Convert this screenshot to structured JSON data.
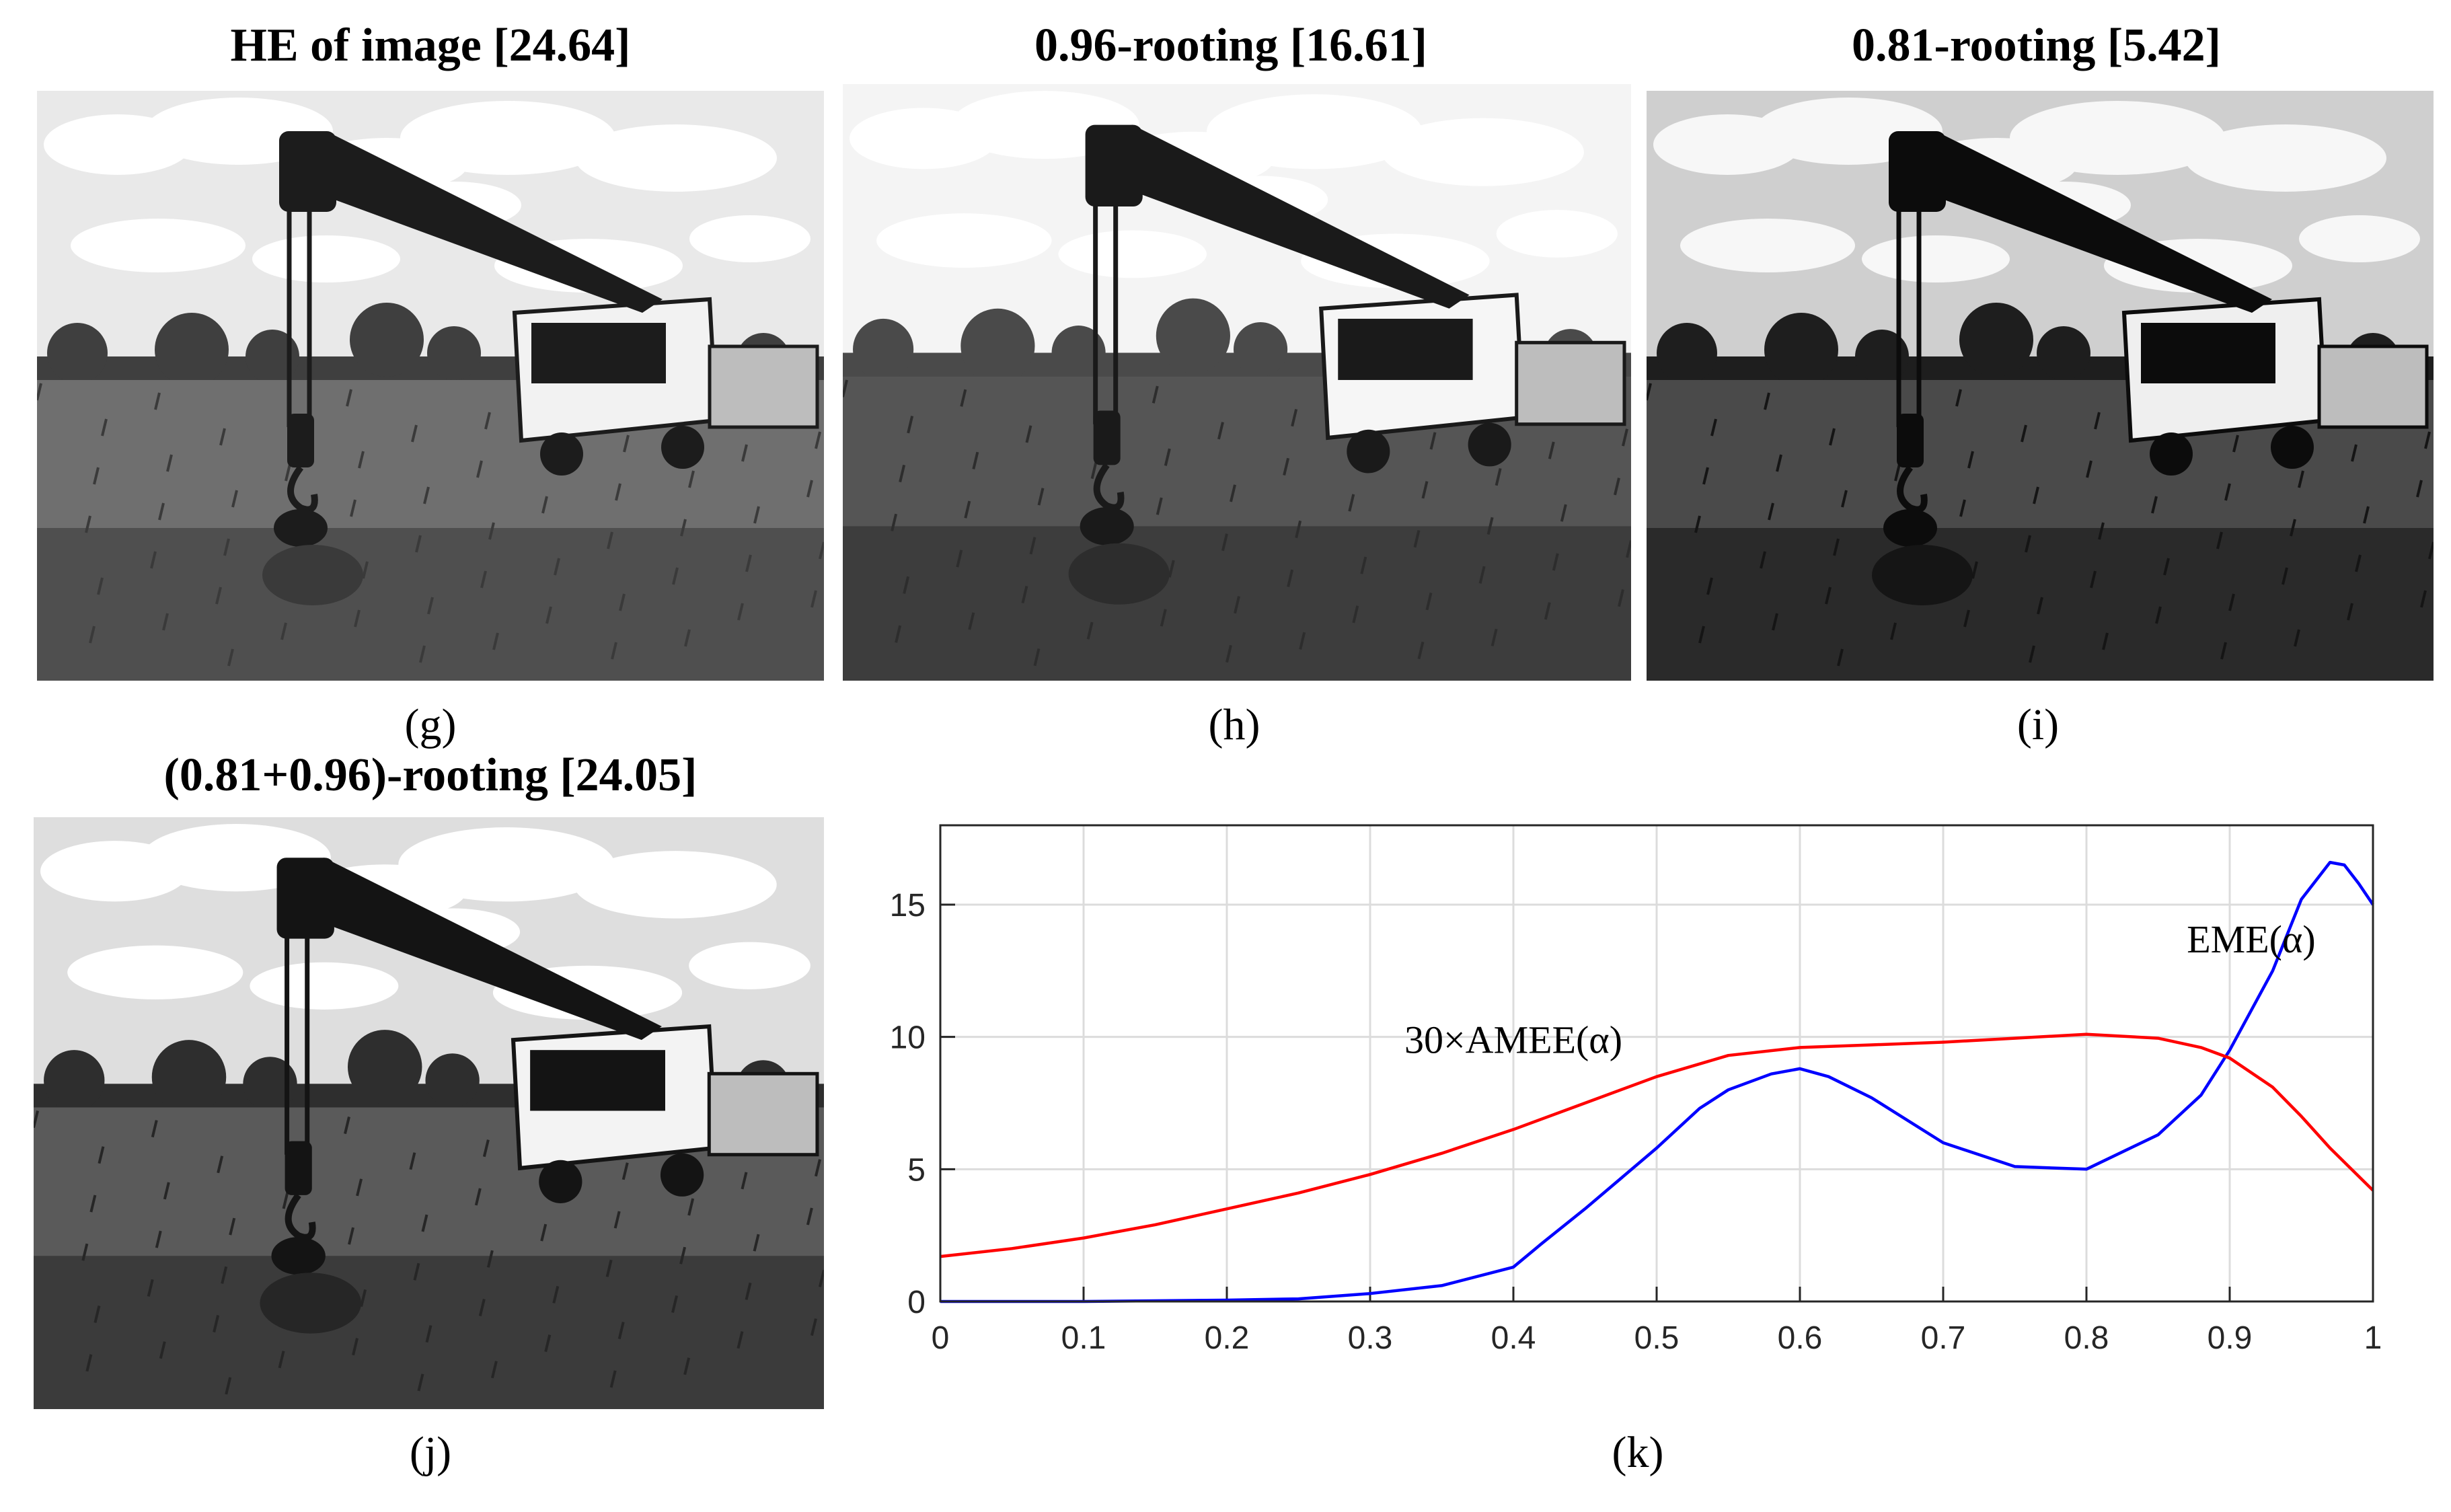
{
  "panels": [
    {
      "id": "g",
      "title": "HE of image [24.64]",
      "label": "(g)",
      "tone": {
        "sky": "#e9e9e9",
        "cloud": "#ffffff",
        "tree": "#3f3f3f",
        "field": "#6f6f6f",
        "field_dark": "#3a3a3a",
        "crane": "#1c1c1c",
        "truck": "#f2f2f2"
      }
    },
    {
      "id": "h",
      "title": "0.96-rooting [16.61]",
      "label": "(h)",
      "tone": {
        "sky": "#f4f4f4",
        "cloud": "#ffffff",
        "tree": "#4a4a4a",
        "field": "#555555",
        "field_dark": "#2d2d2d",
        "crane": "#1a1a1a",
        "truck": "#f6f6f6"
      }
    },
    {
      "id": "i",
      "title": "0.81-rooting [5.42]",
      "label": "(i)",
      "tone": {
        "sky": "#cfcfcf",
        "cloud": "#f7f7f7",
        "tree": "#1e1e1e",
        "field": "#4a4a4a",
        "field_dark": "#151515",
        "crane": "#0c0c0c",
        "truck": "#efefef"
      }
    },
    {
      "id": "j",
      "title": "(0.81+0.96)-rooting [24.05]",
      "label": "(j)",
      "tone": {
        "sky": "#dedede",
        "cloud": "#ffffff",
        "tree": "#2e2e2e",
        "field": "#5a5a5a",
        "field_dark": "#262626",
        "crane": "#141414",
        "truck": "#f3f3f3"
      }
    }
  ],
  "chart_label": "(k)",
  "chart_data": {
    "type": "line",
    "xlim": [
      0,
      1
    ],
    "ylim": [
      0,
      18
    ],
    "x_ticks": [
      0,
      0.1,
      0.2,
      0.3,
      0.4,
      0.5,
      0.6,
      0.7,
      0.8,
      0.9,
      1
    ],
    "x_tick_labels": [
      "0",
      "0.1",
      "0.2",
      "0.3",
      "0.4",
      "0.5",
      "0.6",
      "0.7",
      "0.8",
      "0.9",
      "1"
    ],
    "y_ticks": [
      0,
      5,
      10,
      15
    ],
    "y_tick_labels": [
      "0",
      "5",
      "10",
      "15"
    ],
    "grid": true,
    "series": [
      {
        "name": "EME(α)",
        "color": "#0000ff",
        "x": [
          0,
          0.1,
          0.2,
          0.25,
          0.3,
          0.35,
          0.4,
          0.42,
          0.45,
          0.5,
          0.53,
          0.55,
          0.58,
          0.6,
          0.62,
          0.65,
          0.7,
          0.75,
          0.8,
          0.85,
          0.88,
          0.9,
          0.93,
          0.95,
          0.97,
          0.98,
          0.99,
          1.0
        ],
        "y": [
          0,
          0,
          0.05,
          0.1,
          0.3,
          0.6,
          1.3,
          2.2,
          3.5,
          5.8,
          7.3,
          8.0,
          8.6,
          8.8,
          8.5,
          7.7,
          6.0,
          5.1,
          5.0,
          6.3,
          7.8,
          9.5,
          12.5,
          15.2,
          16.6,
          16.5,
          15.8,
          15.0
        ]
      },
      {
        "name": "30×AMEE(α)",
        "color": "#ff0000",
        "x": [
          0,
          0.05,
          0.1,
          0.15,
          0.2,
          0.25,
          0.3,
          0.35,
          0.4,
          0.45,
          0.5,
          0.55,
          0.6,
          0.65,
          0.7,
          0.75,
          0.8,
          0.85,
          0.88,
          0.9,
          0.93,
          0.95,
          0.97,
          1.0
        ],
        "y": [
          1.7,
          2.0,
          2.4,
          2.9,
          3.5,
          4.1,
          4.8,
          5.6,
          6.5,
          7.5,
          8.5,
          9.3,
          9.6,
          9.7,
          9.8,
          9.95,
          10.1,
          9.95,
          9.6,
          9.2,
          8.1,
          7.0,
          5.8,
          4.2
        ]
      }
    ],
    "annotations": [
      {
        "text": "EME(α)",
        "x": 0.915,
        "y": 13.2
      },
      {
        "text": "30×AMEE(α)",
        "x": 0.4,
        "y": 9.4
      }
    ]
  }
}
